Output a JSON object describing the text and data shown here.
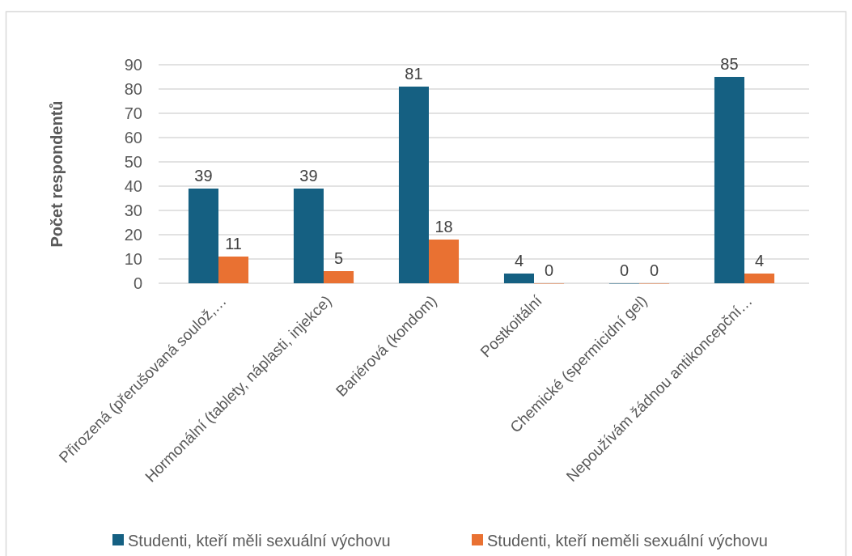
{
  "chart_data": {
    "type": "bar",
    "ylabel": "Počet respondentů",
    "categories": [
      "Přirozená (přerušovaná soulož,…",
      "Hormonální (tablety, náplasti, injekce)",
      "Bariérová (kondom)",
      "Postkoitální",
      "Chemické (spermicidní gel)",
      "Nepoužívám žádnou antikoncepční…"
    ],
    "series": [
      {
        "name": "Studenti, kteří měli sexuální výchovu",
        "color": "#156082",
        "values": [
          39,
          39,
          81,
          4,
          0,
          85
        ]
      },
      {
        "name": "Studenti, kteří neměli sexuální výchovu",
        "color": "#e97132",
        "values": [
          11,
          5,
          18,
          0,
          0,
          4
        ]
      }
    ],
    "ylim": [
      0,
      90
    ],
    "yticks": [
      0,
      10,
      20,
      30,
      40,
      50,
      60,
      70,
      80,
      90
    ],
    "grid": "y",
    "legend": "bottom",
    "data_labels": true
  }
}
